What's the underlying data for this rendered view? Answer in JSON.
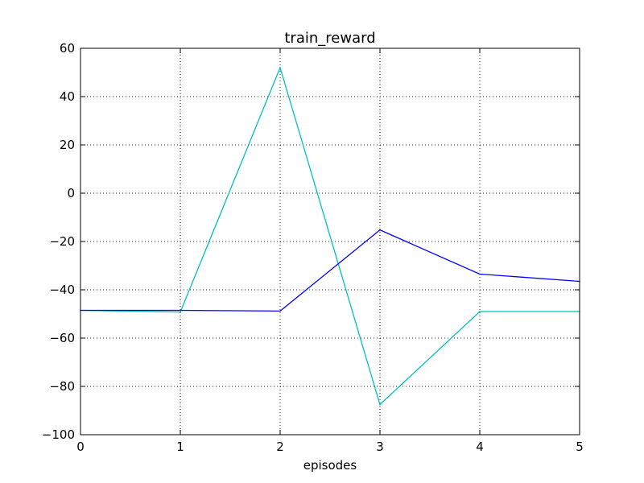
{
  "chart_data": {
    "type": "line",
    "title": "train_reward",
    "xlabel": "episodes",
    "ylabel": "",
    "x": [
      0,
      1,
      2,
      3,
      4,
      5
    ],
    "xlim": [
      0,
      5
    ],
    "ylim": [
      -100,
      60
    ],
    "xticks": [
      "0",
      "1",
      "2",
      "3",
      "4",
      "5"
    ],
    "yticks": [
      "60",
      "40",
      "20",
      "0",
      "−20",
      "−40",
      "−60",
      "−80",
      "−100"
    ],
    "ytick_values": [
      60,
      40,
      20,
      0,
      -20,
      -40,
      -60,
      -80,
      -100
    ],
    "grid": true,
    "legend": "none",
    "series": [
      {
        "color": "#00bfbf",
        "values": [
          -48.5,
          -49.2,
          52,
          -87.5,
          -49,
          -49
        ]
      },
      {
        "color": "#0000ff",
        "values": [
          -48.5,
          -48.5,
          -48.8,
          -15.2,
          -33.5,
          -36.5
        ]
      }
    ]
  }
}
